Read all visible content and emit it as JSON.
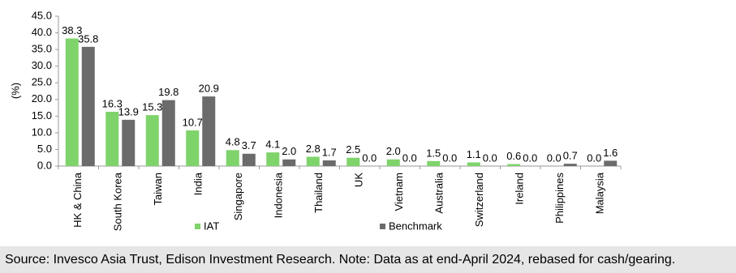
{
  "chart_data": {
    "type": "bar",
    "y_label": "(%)",
    "categories": [
      "HK & China",
      "South Korea",
      "Taiwan",
      "India",
      "Singapore",
      "Indonesia",
      "Thailand",
      "UK",
      "Vietnam",
      "Australia",
      "Switzerland",
      "Ireland",
      "Philippines",
      "Malaysia"
    ],
    "series": [
      {
        "name": "IAT",
        "color": "#7fd36b",
        "values": [
          38.3,
          16.3,
          15.3,
          10.7,
          4.8,
          4.1,
          2.8,
          2.5,
          2.0,
          1.5,
          1.1,
          0.6,
          0.0,
          0.0
        ],
        "value_labels": [
          "38.3",
          "16.3",
          "15.3",
          "10.7",
          "4.8",
          "4.1",
          "2.8",
          "2.5",
          "2.0",
          "1.5",
          "1.1",
          "0.6",
          "0.0",
          "0.0"
        ]
      },
      {
        "name": "Benchmark",
        "color": "#6b6b6b",
        "values": [
          35.8,
          13.9,
          19.8,
          20.9,
          3.7,
          2.0,
          1.7,
          0.0,
          0.0,
          0.0,
          0.0,
          0.0,
          0.7,
          1.6
        ],
        "value_labels": [
          "35.8",
          "13.9",
          "19.8",
          "20.9",
          "3.7",
          "2.0",
          "1.7",
          "0.0",
          "0.0",
          "0.0",
          "0.0",
          "0.0",
          "0.7",
          "1.6"
        ]
      }
    ],
    "ylim": [
      0,
      45
    ],
    "yticks": [
      {
        "value": 0,
        "label": "0.0"
      },
      {
        "value": 5,
        "label": "5.0"
      },
      {
        "value": 10,
        "label": "10.0"
      },
      {
        "value": 15,
        "label": "15.0"
      },
      {
        "value": 20,
        "label": "20.0"
      },
      {
        "value": 25,
        "label": "25.0"
      },
      {
        "value": 30,
        "label": "30.0"
      },
      {
        "value": 35,
        "label": "35.0"
      },
      {
        "value": 40,
        "label": "40.0"
      },
      {
        "value": 45,
        "label": "45.0"
      }
    ],
    "grid": false,
    "legend": "bottom",
    "source": "Source: Invesco Asia Trust, Edison Investment Research. Note: Data as at end-April 2024, rebased for cash/gearing."
  }
}
